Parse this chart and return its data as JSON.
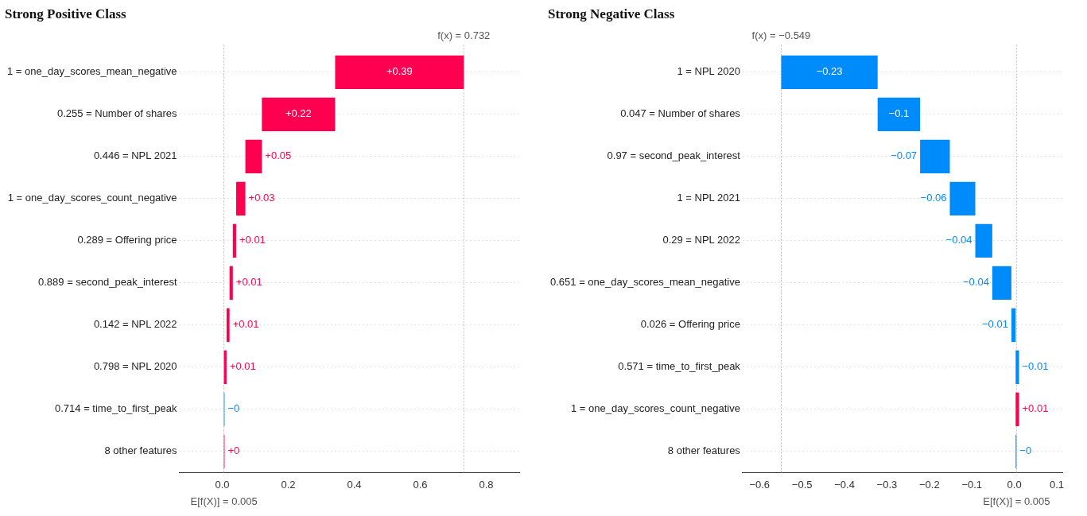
{
  "chart_data": [
    {
      "type": "bar",
      "orientation": "horizontal",
      "title": "Strong Positive Class",
      "categories": [
        "1 = one_day_scores_mean_negative",
        "0.255 = Number of shares",
        "0.446 = NPL 2021",
        "1 = one_day_scores_count_negative",
        "0.289 = Offering price",
        "0.889 = second_peak_interest",
        "0.142 = NPL 2022",
        "0.798 = NPL 2020",
        "0.714 = time_to_first_peak",
        "8 other features"
      ],
      "base": [
        0.342,
        0.12,
        0.07,
        0.042,
        0.032,
        0.022,
        0.013,
        0.005,
        0.007,
        0.005
      ],
      "values": [
        0.39,
        0.222,
        0.05,
        0.028,
        0.01,
        0.01,
        0.009,
        0.008,
        -0.002,
        0.002
      ],
      "value_labels": [
        "+0.39",
        "+0.22",
        "+0.05",
        "+0.03",
        "+0.01",
        "+0.01",
        "+0.01",
        "+0.01",
        "−0",
        "+0"
      ],
      "colors": [
        "#ff0051",
        "#ff0051",
        "#ff0051",
        "#ff0051",
        "#ff0051",
        "#ff0051",
        "#ff0051",
        "#ff0051",
        "#008bfb",
        "#ff0051"
      ],
      "xlim": [
        -0.13,
        0.9
      ],
      "xticks": [
        {
          "value": 0,
          "label": "0.0"
        },
        {
          "value": 0.2,
          "label": "0.2"
        },
        {
          "value": 0.4,
          "label": "0.4"
        },
        {
          "value": 0.6,
          "label": "0.6"
        },
        {
          "value": 0.8,
          "label": "0.8"
        }
      ],
      "ref_lines": [
        {
          "axis": "x",
          "value": 0.732,
          "label": "f(x) = 0.732"
        },
        {
          "axis": "x",
          "value": 0.005,
          "label": "E[f(X)] = 0.005"
        }
      ],
      "grid": "y"
    },
    {
      "type": "bar",
      "orientation": "horizontal",
      "title": "Strong Negative Class",
      "categories": [
        "1 = NPL 2020",
        "0.047 = Number of shares",
        "0.97 = second_peak_interest",
        "1 = NPL 2021",
        "0.29 = NPL 2022",
        "0.651 = one_day_scores_mean_negative",
        "0.026 = Offering price",
        "0.571 = time_to_first_peak",
        "1 = one_day_scores_count_negative",
        "8 other features"
      ],
      "base": [
        -0.322,
        -0.222,
        -0.152,
        -0.092,
        -0.052,
        -0.007,
        0.003,
        0.011,
        0.003,
        0.005
      ],
      "values": [
        -0.227,
        -0.1,
        -0.07,
        -0.06,
        -0.04,
        -0.045,
        -0.01,
        -0.008,
        0.008,
        -0.002
      ],
      "value_labels": [
        "−0.23",
        "−0.1",
        "−0.07",
        "−0.06",
        "−0.04",
        "−0.04",
        "−0.01",
        "−0.01",
        "+0.01",
        "−0"
      ],
      "colors": [
        "#008bfb",
        "#008bfb",
        "#008bfb",
        "#008bfb",
        "#008bfb",
        "#008bfb",
        "#008bfb",
        "#008bfb",
        "#ff0051",
        "#008bfb"
      ],
      "xlim": [
        -0.64,
        0.113
      ],
      "xticks": [
        {
          "value": -0.6,
          "label": "−0.6"
        },
        {
          "value": -0.5,
          "label": "−0.5"
        },
        {
          "value": -0.4,
          "label": "−0.4"
        },
        {
          "value": -0.3,
          "label": "−0.3"
        },
        {
          "value": -0.2,
          "label": "−0.2"
        },
        {
          "value": -0.1,
          "label": "−0.1"
        },
        {
          "value": 0,
          "label": "0.0"
        },
        {
          "value": 0.1,
          "label": "0.1"
        }
      ],
      "ref_lines": [
        {
          "axis": "x",
          "value": -0.549,
          "label": "f(x) = −0.549"
        },
        {
          "axis": "x",
          "value": 0.005,
          "label": "E[f(X)] = 0.005"
        }
      ],
      "grid": "y"
    }
  ]
}
